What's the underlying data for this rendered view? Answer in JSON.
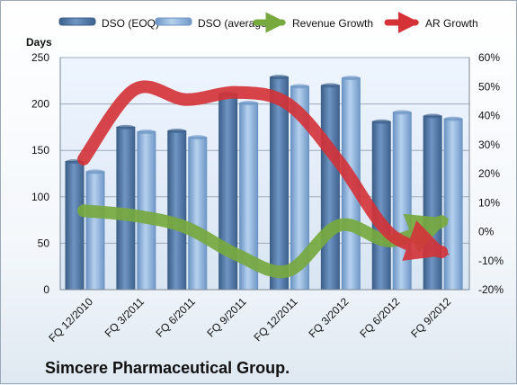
{
  "footer_title": "Simcere Pharmaceutical Group.",
  "legend": {
    "dso_eoq": "DSO (EOQ)",
    "dso_average": "DSO (average)",
    "revenue_growth": "Revenue Growth",
    "ar_growth": "AR Growth"
  },
  "colors": {
    "dso_eoq": "#5a7eaa",
    "dso_average": "#8fb1d8",
    "revenue_growth": "#77a93f",
    "ar_growth": "#d43237"
  },
  "chart_data": {
    "type": "bar",
    "title": "",
    "subtitle": "Simcere Pharmaceutical Group.",
    "categories": [
      "FQ 12/2010",
      "FQ 3/2011",
      "FQ 6/2011",
      "FQ 9/2011",
      "FQ 12/2011",
      "FQ 3/2012",
      "FQ 6/2012",
      "FQ 9/2012"
    ],
    "ylabel": "Days",
    "ylim": [
      0,
      250
    ],
    "y_ticks": [
      "0",
      "50",
      "100",
      "150",
      "200",
      "250"
    ],
    "y2lim": [
      -20,
      60
    ],
    "y2_ticks": [
      "-20%",
      "-10%",
      "0%",
      "10%",
      "20%",
      "30%",
      "40%",
      "50%",
      "60%"
    ],
    "grid": true,
    "legend_position": "top",
    "series": [
      {
        "name": "DSO (EOQ)",
        "type": "bar",
        "values": [
          138,
          175,
          171,
          211,
          229,
          220,
          181,
          187
        ]
      },
      {
        "name": "DSO (average)",
        "type": "bar",
        "values": [
          127,
          170,
          164,
          201,
          219,
          228,
          191,
          184
        ]
      },
      {
        "name": "Revenue Growth",
        "type": "line",
        "axis": "right",
        "unit": "%",
        "values": [
          7.2,
          5.5,
          1.5,
          -8.0,
          -13.5,
          2.2,
          -3.2,
          3.5
        ]
      },
      {
        "name": "AR Growth",
        "type": "line",
        "axis": "right",
        "unit": "%",
        "values": [
          25.0,
          49.0,
          45.5,
          48.0,
          44.0,
          24.0,
          -0.8,
          -7.0
        ]
      }
    ]
  }
}
